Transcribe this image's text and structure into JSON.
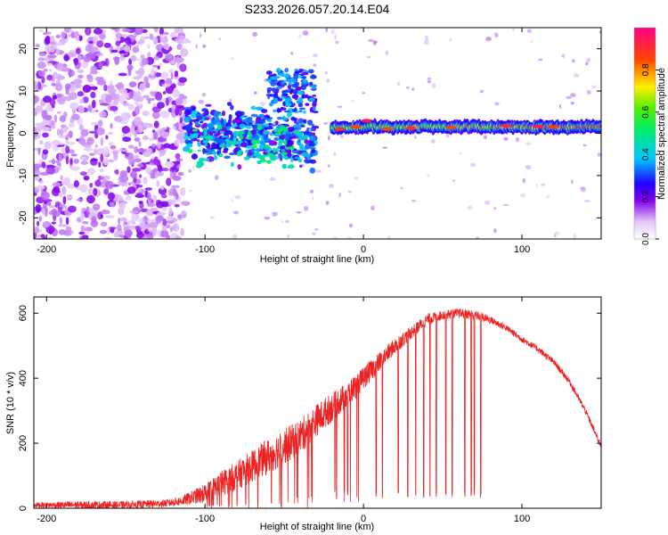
{
  "title": "S233.2026.057.20.14.E04",
  "chart_data": [
    {
      "type": "heatmap",
      "name": "spectrogram",
      "xlabel": "Height of straight line (km)",
      "ylabel": "Frequency (Hz)",
      "xlim": [
        -208,
        150
      ],
      "ylim": [
        -25,
        25
      ],
      "xticks": [
        -200,
        -100,
        0,
        100
      ],
      "yticks": [
        -20,
        -10,
        0,
        10,
        20
      ],
      "colorbar": {
        "label": "Normalized spectral amplitude",
        "range": [
          0,
          1
        ],
        "ticks": [
          0.0,
          0.2,
          0.4,
          0.6,
          0.8
        ]
      },
      "regions": [
        {
          "name": "noise",
          "x_range": [
            -208,
            -112
          ],
          "y_range": [
            -25,
            25
          ],
          "level": 0.12
        },
        {
          "name": "onset-burst",
          "x_range": [
            -112,
            -30
          ],
          "y_range": [
            -6,
            8
          ],
          "level": 0.35
        },
        {
          "name": "scattered-tones",
          "x_range": [
            -60,
            -30
          ],
          "y_range": [
            5,
            15
          ],
          "level": 0.3
        },
        {
          "name": "steady-tone",
          "x_range": [
            -20,
            150
          ],
          "y_center": 1.5,
          "level": 0.75
        }
      ]
    },
    {
      "type": "line",
      "name": "snr",
      "xlabel": "Height of straight line (km)",
      "ylabel": "SNR (10 * v/v)",
      "xlim": [
        -208,
        150
      ],
      "ylim": [
        0,
        650
      ],
      "xticks": [
        -200,
        -100,
        0,
        100
      ],
      "yticks": [
        0,
        200,
        400,
        600
      ],
      "color": "#ee2222",
      "series": [
        {
          "name": "SNR",
          "x": [
            -208,
            -180,
            -150,
            -125,
            -115,
            -100,
            -90,
            -80,
            -70,
            -60,
            -50,
            -40,
            -30,
            -20,
            -10,
            0,
            10,
            20,
            30,
            40,
            50,
            60,
            70,
            80,
            90,
            100,
            110,
            120,
            130,
            140,
            150
          ],
          "base": [
            10,
            10,
            10,
            15,
            22,
            45,
            75,
            100,
            130,
            160,
            190,
            220,
            270,
            310,
            350,
            400,
            450,
            500,
            540,
            580,
            595,
            600,
            595,
            580,
            555,
            520,
            490,
            450,
            390,
            300,
            190
          ],
          "noise": [
            8,
            12,
            12,
            12,
            15,
            30,
            40,
            45,
            50,
            55,
            55,
            55,
            50,
            45,
            40,
            35,
            30,
            25,
            20,
            18,
            15,
            15,
            15,
            12,
            10,
            10,
            10,
            10,
            10,
            10,
            10
          ]
        }
      ],
      "dropouts_x": [
        -18,
        -10,
        8,
        12,
        22,
        28,
        33,
        38,
        42,
        46,
        52,
        56,
        64,
        68,
        70,
        74
      ]
    }
  ]
}
